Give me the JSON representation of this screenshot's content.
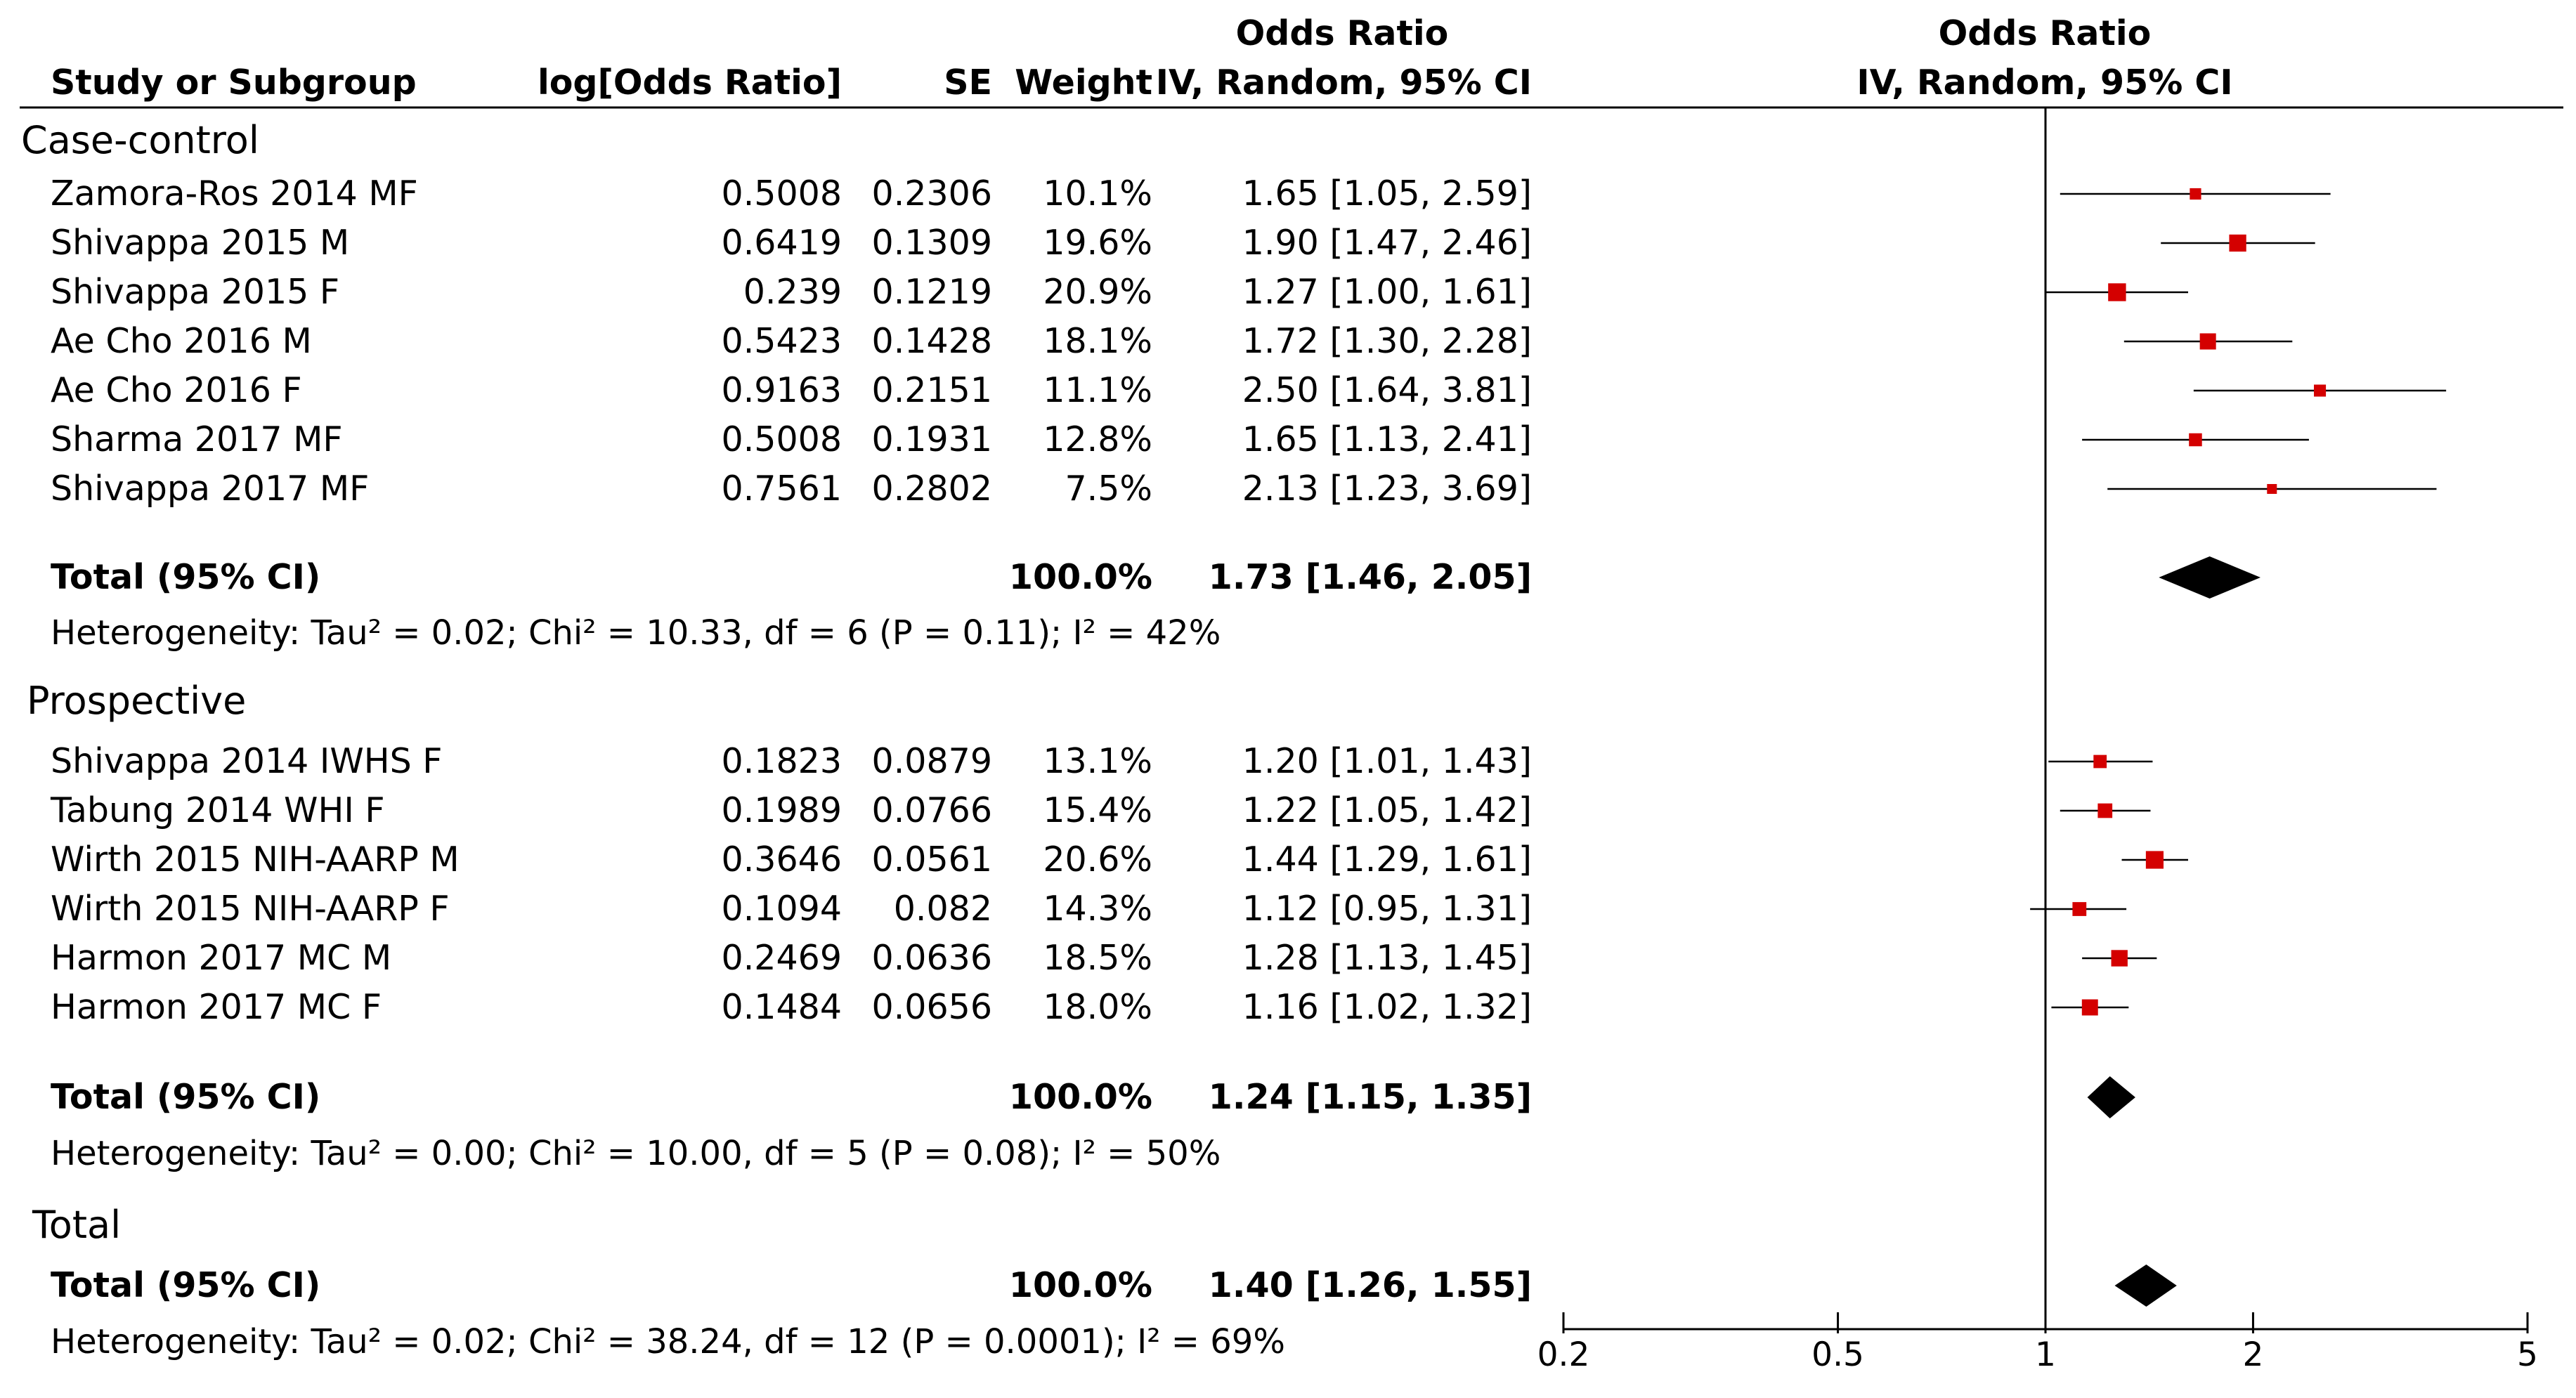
{
  "headers": {
    "study": "Study or Subgroup",
    "logor": "log[Odds Ratio]",
    "se": "SE",
    "weight": "Weight",
    "or_top": "Odds Ratio",
    "or_sub": "IV, Random, 95% CI",
    "plot_top": "Odds Ratio",
    "plot_sub": "IV, Random, 95% CI"
  },
  "total_section_label": "Total",
  "chart_data": {
    "type": "forest",
    "x_scale": "log",
    "xlim": [
      0.2,
      5
    ],
    "xticks": [
      0.2,
      0.5,
      1,
      2,
      5
    ],
    "xtick_labels": [
      "0.2",
      "0.5",
      "1",
      "2",
      "5"
    ],
    "null_line": 1,
    "marker_color": "#d40000",
    "subgroups": [
      {
        "name": "Case-control",
        "studies": [
          {
            "study": "Zamora-Ros 2014 MF",
            "logor": "0.5008",
            "se": "0.2306",
            "weight": "10.1%",
            "ci_text": "1.65 [1.05, 2.59]",
            "or": 1.65,
            "lo": 1.05,
            "hi": 2.59,
            "w": 10.1
          },
          {
            "study": "Shivappa 2015 M",
            "logor": "0.6419",
            "se": "0.1309",
            "weight": "19.6%",
            "ci_text": "1.90 [1.47, 2.46]",
            "or": 1.9,
            "lo": 1.47,
            "hi": 2.46,
            "w": 19.6
          },
          {
            "study": "Shivappa 2015 F",
            "logor": "0.239",
            "se": "0.1219",
            "weight": "20.9%",
            "ci_text": "1.27 [1.00, 1.61]",
            "or": 1.27,
            "lo": 1.0,
            "hi": 1.61,
            "w": 20.9
          },
          {
            "study": "Ae Cho 2016 M",
            "logor": "0.5423",
            "se": "0.1428",
            "weight": "18.1%",
            "ci_text": "1.72 [1.30, 2.28]",
            "or": 1.72,
            "lo": 1.3,
            "hi": 2.28,
            "w": 18.1
          },
          {
            "study": "Ae Cho 2016 F",
            "logor": "0.9163",
            "se": "0.2151",
            "weight": "11.1%",
            "ci_text": "2.50 [1.64, 3.81]",
            "or": 2.5,
            "lo": 1.64,
            "hi": 3.81,
            "w": 11.1
          },
          {
            "study": "Sharma 2017 MF",
            "logor": "0.5008",
            "se": "0.1931",
            "weight": "12.8%",
            "ci_text": "1.65 [1.13, 2.41]",
            "or": 1.65,
            "lo": 1.13,
            "hi": 2.41,
            "w": 12.8
          },
          {
            "study": "Shivappa 2017 MF",
            "logor": "0.7561",
            "se": "0.2802",
            "weight": "7.5%",
            "ci_text": "2.13 [1.23, 3.69]",
            "or": 2.13,
            "lo": 1.23,
            "hi": 3.69,
            "w": 7.5
          }
        ],
        "total": {
          "label": "Total (95% CI)",
          "weight": "100.0%",
          "ci_text": "1.73 [1.46, 2.05]",
          "or": 1.73,
          "lo": 1.46,
          "hi": 2.05
        },
        "heterogeneity": "Heterogeneity: Tau² = 0.02; Chi² = 10.33, df = 6 (P = 0.11); I² = 42%"
      },
      {
        "name": "Prospective",
        "studies": [
          {
            "study": "Shivappa 2014 IWHS F",
            "logor": "0.1823",
            "se": "0.0879",
            "weight": "13.1%",
            "ci_text": "1.20 [1.01, 1.43]",
            "or": 1.2,
            "lo": 1.01,
            "hi": 1.43,
            "w": 13.1
          },
          {
            "study": "Tabung 2014 WHI F",
            "logor": "0.1989",
            "se": "0.0766",
            "weight": "15.4%",
            "ci_text": "1.22 [1.05, 1.42]",
            "or": 1.22,
            "lo": 1.05,
            "hi": 1.42,
            "w": 15.4
          },
          {
            "study": "Wirth 2015 NIH-AARP M",
            "logor": "0.3646",
            "se": "0.0561",
            "weight": "20.6%",
            "ci_text": "1.44 [1.29, 1.61]",
            "or": 1.44,
            "lo": 1.29,
            "hi": 1.61,
            "w": 20.6
          },
          {
            "study": "Wirth 2015 NIH-AARP F",
            "logor": "0.1094",
            "se": "0.082",
            "weight": "14.3%",
            "ci_text": "1.12 [0.95, 1.31]",
            "or": 1.12,
            "lo": 0.95,
            "hi": 1.31,
            "w": 14.3
          },
          {
            "study": "Harmon 2017 MC M",
            "logor": "0.2469",
            "se": "0.0636",
            "weight": "18.5%",
            "ci_text": "1.28 [1.13, 1.45]",
            "or": 1.28,
            "lo": 1.13,
            "hi": 1.45,
            "w": 18.5
          },
          {
            "study": "Harmon 2017 MC F",
            "logor": "0.1484",
            "se": "0.0656",
            "weight": "18.0%",
            "ci_text": "1.16 [1.02, 1.32]",
            "or": 1.16,
            "lo": 1.02,
            "hi": 1.32,
            "w": 18.0
          }
        ],
        "total": {
          "label": "Total (95% CI)",
          "weight": "100.0%",
          "ci_text": "1.24 [1.15, 1.35]",
          "or": 1.24,
          "lo": 1.15,
          "hi": 1.35
        },
        "heterogeneity": "Heterogeneity: Tau² = 0.00; Chi² = 10.00, df = 5 (P = 0.08); I² = 50%"
      }
    ],
    "overall": {
      "label": "Total (95% CI)",
      "weight": "100.0%",
      "ci_text": "1.40 [1.26, 1.55]",
      "or": 1.4,
      "lo": 1.26,
      "hi": 1.55,
      "heterogeneity": "Heterogeneity: Tau² = 0.02; Chi² = 38.24, df = 12 (P = 0.0001); I² = 69%"
    }
  }
}
